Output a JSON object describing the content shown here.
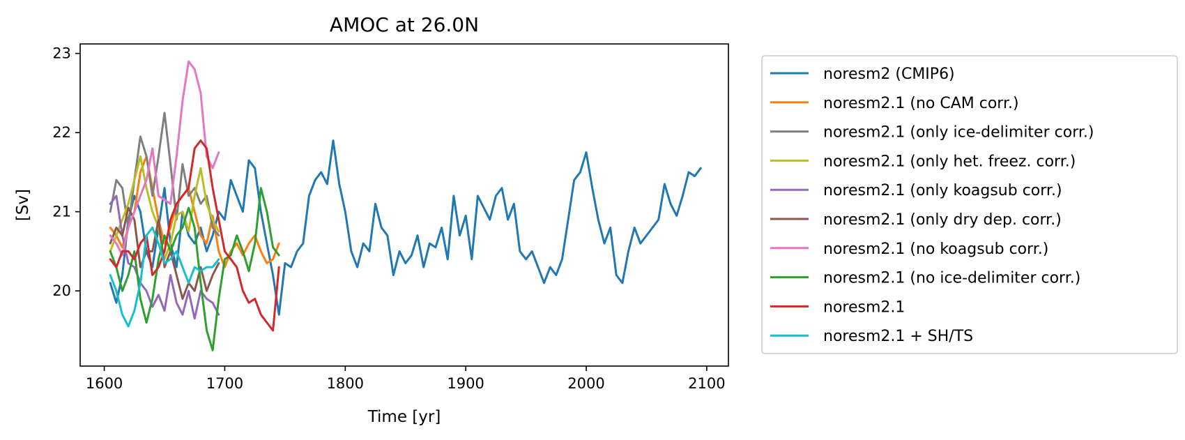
{
  "chart_data": {
    "type": "line",
    "title": "AMOC at 26.0N",
    "xlabel": "Time [yr]",
    "ylabel": "[Sv]",
    "xlim": [
      1580,
      2118
    ],
    "ylim": [
      19.05,
      23.12
    ],
    "xticks": [
      1600,
      1700,
      1800,
      1900,
      2000,
      2100
    ],
    "yticks": [
      20,
      21,
      22,
      23
    ],
    "grid": false,
    "legend_position": "outside-right",
    "series": [
      {
        "name": "noresm2 (CMIP6)",
        "color": "#1f77b4",
        "x": [
          1605,
          1610,
          1615,
          1620,
          1625,
          1630,
          1635,
          1640,
          1645,
          1650,
          1655,
          1660,
          1665,
          1670,
          1675,
          1680,
          1685,
          1690,
          1695,
          1700,
          1705,
          1710,
          1715,
          1720,
          1725,
          1730,
          1735,
          1740,
          1745,
          1750,
          1755,
          1760,
          1765,
          1770,
          1775,
          1780,
          1785,
          1790,
          1795,
          1800,
          1805,
          1810,
          1815,
          1820,
          1825,
          1830,
          1835,
          1840,
          1845,
          1850,
          1855,
          1860,
          1865,
          1870,
          1875,
          1880,
          1885,
          1890,
          1895,
          1900,
          1905,
          1910,
          1915,
          1920,
          1925,
          1930,
          1935,
          1940,
          1945,
          1950,
          1955,
          1960,
          1965,
          1970,
          1975,
          1980,
          1985,
          1990,
          1995,
          2000,
          2005,
          2010,
          2015,
          2020,
          2025,
          2030,
          2035,
          2040,
          2045,
          2050,
          2055,
          2060,
          2065,
          2070,
          2075,
          2080,
          2085,
          2090,
          2095
        ],
        "y": [
          20.1,
          19.85,
          20.2,
          20.9,
          21.2,
          21.0,
          20.5,
          20.3,
          20.8,
          21.3,
          20.6,
          20.3,
          21.0,
          20.7,
          20.6,
          20.8,
          20.5,
          20.7,
          21.0,
          20.9,
          21.4,
          21.2,
          21.0,
          21.65,
          21.55,
          21.0,
          20.6,
          20.2,
          19.7,
          20.35,
          20.3,
          20.5,
          20.6,
          21.2,
          21.4,
          21.5,
          21.35,
          21.9,
          21.35,
          21.0,
          20.5,
          20.3,
          20.6,
          20.5,
          21.1,
          20.8,
          20.7,
          20.2,
          20.5,
          20.35,
          20.45,
          20.7,
          20.3,
          20.6,
          20.55,
          20.8,
          20.4,
          21.2,
          20.7,
          20.95,
          20.4,
          21.2,
          21.05,
          20.9,
          21.2,
          21.3,
          20.9,
          21.1,
          20.5,
          20.4,
          20.5,
          20.3,
          20.1,
          20.3,
          20.2,
          20.4,
          20.9,
          21.4,
          21.5,
          21.75,
          21.3,
          20.9,
          20.6,
          20.8,
          20.2,
          20.1,
          20.5,
          20.8,
          20.6,
          20.7,
          20.8,
          20.9,
          21.35,
          21.1,
          20.95,
          21.2,
          21.5,
          21.45,
          21.55
        ]
      },
      {
        "name": "noresm2.1 (no CAM corr.)",
        "color": "#ff7f0e",
        "x": [
          1605,
          1610,
          1615,
          1620,
          1625,
          1630,
          1635,
          1640,
          1645,
          1650,
          1655,
          1660,
          1665,
          1670,
          1675,
          1680,
          1685,
          1690,
          1695,
          1700,
          1705,
          1710,
          1715,
          1720,
          1725,
          1730,
          1735,
          1740,
          1745
        ],
        "y": [
          20.8,
          20.7,
          20.55,
          20.8,
          21.0,
          21.5,
          21.7,
          21.3,
          20.9,
          20.6,
          20.8,
          21.1,
          21.2,
          21.3,
          21.0,
          20.7,
          20.6,
          20.95,
          20.5,
          20.3,
          20.5,
          20.6,
          20.45,
          20.6,
          20.7,
          20.5,
          20.35,
          20.4,
          20.6
        ]
      },
      {
        "name": "noresm2.1 (only ice-delimiter corr.)",
        "color": "#7f7f7f",
        "x": [
          1605,
          1610,
          1615,
          1620,
          1625,
          1630,
          1635,
          1640,
          1645,
          1650,
          1655,
          1660,
          1665,
          1670,
          1675,
          1680,
          1685,
          1690,
          1695
        ],
        "y": [
          21.0,
          21.4,
          21.3,
          20.8,
          21.4,
          21.95,
          21.7,
          21.2,
          21.7,
          22.25,
          21.6,
          20.9,
          21.6,
          21.2,
          21.3,
          21.1,
          21.2,
          20.8,
          20.7
        ]
      },
      {
        "name": "noresm2.1 (only het. freez. corr.)",
        "color": "#bcbd22",
        "x": [
          1605,
          1610,
          1615,
          1620,
          1625,
          1630,
          1635,
          1640,
          1645,
          1650,
          1655,
          1660,
          1665,
          1670,
          1675,
          1680,
          1685,
          1690,
          1695
        ],
        "y": [
          20.5,
          20.7,
          20.9,
          21.1,
          21.4,
          21.7,
          21.3,
          21.0,
          20.8,
          20.4,
          20.6,
          20.95,
          21.0,
          20.75,
          21.2,
          21.55,
          21.1,
          20.9,
          20.75
        ]
      },
      {
        "name": "noresm2.1 (only koagsub corr.)",
        "color": "#9467bd",
        "x": [
          1605,
          1610,
          1615,
          1620,
          1625,
          1630,
          1635,
          1640,
          1645,
          1650,
          1655,
          1660,
          1665,
          1670,
          1675,
          1680,
          1685,
          1690,
          1695
        ],
        "y": [
          21.1,
          21.2,
          20.7,
          20.35,
          20.3,
          20.1,
          20.0,
          19.8,
          19.95,
          19.75,
          20.2,
          19.85,
          19.7,
          20.0,
          19.65,
          20.0,
          19.9,
          19.85,
          19.7
        ]
      },
      {
        "name": "noresm2.1 (only dry dep. corr.)",
        "color": "#8c564b",
        "x": [
          1605,
          1610,
          1615,
          1620,
          1625,
          1630,
          1635,
          1640,
          1645,
          1650,
          1655,
          1660,
          1665,
          1670,
          1675,
          1680,
          1685,
          1690,
          1695
        ],
        "y": [
          20.6,
          20.8,
          20.7,
          21.05,
          20.9,
          20.3,
          20.5,
          20.5,
          20.9,
          20.3,
          20.5,
          20.2,
          19.9,
          20.1,
          20.0,
          20.3,
          20.0,
          20.2,
          20.35
        ]
      },
      {
        "name": "noresm2.1 (no koagsub corr.)",
        "color": "#e377c2",
        "x": [
          1605,
          1610,
          1615,
          1620,
          1625,
          1630,
          1635,
          1640,
          1645,
          1650,
          1655,
          1660,
          1665,
          1670,
          1675,
          1680,
          1685,
          1690,
          1695
        ],
        "y": [
          20.7,
          20.6,
          20.45,
          20.8,
          21.0,
          21.2,
          21.4,
          21.8,
          21.2,
          21.15,
          21.1,
          21.7,
          22.4,
          22.9,
          22.8,
          22.5,
          21.7,
          21.55,
          21.75
        ]
      },
      {
        "name": "noresm2.1 (no ice-delimiter corr.)",
        "color": "#2ca02c",
        "x": [
          1605,
          1610,
          1615,
          1620,
          1625,
          1630,
          1635,
          1640,
          1645,
          1650,
          1655,
          1660,
          1665,
          1670,
          1675,
          1680,
          1685,
          1690,
          1695,
          1700,
          1705,
          1710,
          1715,
          1720,
          1725,
          1730,
          1735,
          1740,
          1745
        ],
        "y": [
          20.5,
          20.3,
          20.0,
          20.2,
          20.5,
          19.9,
          19.6,
          19.9,
          20.4,
          20.7,
          20.5,
          20.7,
          20.8,
          21.05,
          20.8,
          20.1,
          19.5,
          19.25,
          19.9,
          20.4,
          20.45,
          20.7,
          20.5,
          20.25,
          20.6,
          21.3,
          21.0,
          20.55,
          20.45
        ]
      },
      {
        "name": "noresm2.1",
        "color": "#d62728",
        "x": [
          1605,
          1610,
          1615,
          1620,
          1625,
          1630,
          1635,
          1640,
          1645,
          1650,
          1655,
          1660,
          1665,
          1670,
          1675,
          1680,
          1685,
          1690,
          1695,
          1700,
          1705,
          1710,
          1715,
          1720,
          1725,
          1730,
          1735,
          1740,
          1745
        ],
        "y": [
          20.4,
          20.3,
          20.5,
          20.5,
          20.4,
          20.6,
          20.7,
          20.2,
          20.3,
          20.5,
          20.9,
          21.1,
          21.2,
          21.3,
          21.8,
          21.9,
          21.8,
          21.3,
          20.9,
          20.5,
          20.4,
          20.3,
          20.0,
          19.85,
          19.9,
          19.7,
          19.6,
          19.5,
          20.3
        ]
      },
      {
        "name": "noresm2.1 + SH/TS",
        "color": "#17becf",
        "x": [
          1605,
          1610,
          1615,
          1620,
          1625,
          1630,
          1635,
          1640,
          1645,
          1650,
          1655,
          1660,
          1665,
          1670,
          1675,
          1680,
          1685,
          1690,
          1695
        ],
        "y": [
          20.2,
          20.0,
          19.7,
          19.55,
          19.75,
          20.1,
          20.7,
          20.8,
          20.6,
          20.35,
          20.4,
          20.5,
          20.3,
          20.1,
          20.3,
          20.25,
          20.3,
          20.3,
          20.4
        ]
      }
    ]
  }
}
